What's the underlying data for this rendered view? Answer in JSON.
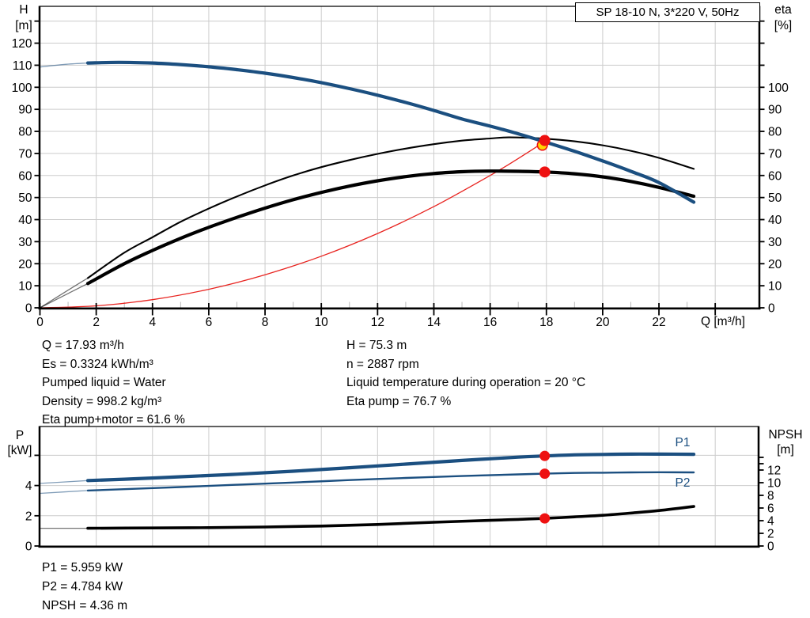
{
  "title_box": {
    "text": "SP 18-10 N, 3*220 V, 50Hz"
  },
  "colors": {
    "curve_blue": "#1b4f80",
    "curve_black": "#000000",
    "curve_red": "#e8231f",
    "marker_red": "#ee1111",
    "marker_yellow": "#ffd500",
    "grid": "#cccccc",
    "minor_tick_gray": "#bbbbbb",
    "axis_black": "#000000"
  },
  "top_chart_labels": {
    "y_left_1": "H",
    "y_left_2": "[m]",
    "y_right_1": "eta",
    "y_right_2": "[%]",
    "x_unit": "Q [m³/h]"
  },
  "bottom_chart_labels": {
    "y_left_1": "P",
    "y_left_2": "[kW]",
    "y_right_1": "NPSH",
    "y_right_2": "[m]",
    "p1": "P1",
    "p2": "P2"
  },
  "operating_point": {
    "left": [
      "Q = 17.93 m³/h",
      "Es = 0.3324 kWh/m³",
      "Pumped liquid = Water",
      "Density = 998.2 kg/m³",
      "Eta pump+motor = 61.6 %"
    ],
    "right": [
      "H = 75.3 m",
      "n = 2887 rpm",
      "Liquid temperature during operation = 20 °C",
      "Eta pump = 76.7 %"
    ]
  },
  "results": [
    "P1 = 5.959 kW",
    "P2 = 4.784 kW",
    "NPSH = 4.36 m"
  ],
  "chart_data": [
    {
      "type": "line",
      "title": "SP 18-10 N, 3*220 V, 50Hz",
      "xlabel": "Q [m³/h]",
      "x_range": [
        0,
        25.6
      ],
      "x_labeled_ticks": [
        0,
        2,
        4,
        6,
        8,
        10,
        12,
        14,
        16,
        18,
        20,
        22
      ],
      "x_major_ticks": [
        0,
        2,
        4,
        6,
        8,
        10,
        12,
        14,
        16,
        18,
        20,
        22,
        24
      ],
      "x_minor_ticks": [
        1,
        3,
        5,
        7,
        9,
        11,
        13,
        15,
        17,
        19,
        21,
        23
      ],
      "y_left": {
        "label": "H [m]",
        "range": [
          0,
          136
        ],
        "labeled_ticks": [
          0,
          10,
          20,
          30,
          40,
          50,
          60,
          70,
          80,
          90,
          100,
          110,
          120
        ],
        "unlabeled_ticks": [
          130
        ]
      },
      "y_right": {
        "label": "eta [%]",
        "range": [
          0,
          139
        ],
        "labeled_ticks": [
          0,
          10,
          20,
          30,
          40,
          50,
          60,
          70,
          80,
          90,
          100
        ],
        "unlabeled_ticks": [
          110,
          120,
          130
        ]
      },
      "grid": true,
      "min_continuous_flow": 1.7,
      "series": [
        {
          "name": "H",
          "axis": "left",
          "color_key": "curve_blue",
          "width": 4.2,
          "minflow_split": true,
          "points": [
            [
              0,
              109.2
            ],
            [
              0.9,
              110.4
            ],
            [
              1.7,
              111.0
            ],
            [
              2.8,
              111.3
            ],
            [
              4,
              111.0
            ],
            [
              5,
              110.3
            ],
            [
              6,
              109.3
            ],
            [
              7,
              108.0
            ],
            [
              8,
              106.4
            ],
            [
              9,
              104.4
            ],
            [
              10,
              102.1
            ],
            [
              11,
              99.4
            ],
            [
              12,
              96.4
            ],
            [
              13,
              93.1
            ],
            [
              14,
              89.5
            ],
            [
              15,
              85.6
            ],
            [
              16,
              82.4
            ],
            [
              17,
              78.9
            ],
            [
              17.93,
              75.3
            ],
            [
              19,
              71.0
            ],
            [
              20,
              66.6
            ],
            [
              21,
              61.9
            ],
            [
              22,
              56.8
            ],
            [
              23.24,
              47.9
            ]
          ]
        },
        {
          "name": "eta pump",
          "axis": "right",
          "color_key": "curve_black",
          "width": 2.1,
          "minflow_split": true,
          "points": [
            [
              0,
              0
            ],
            [
              1,
              8
            ],
            [
              1.7,
              13.5
            ],
            [
              3,
              25
            ],
            [
              4,
              32
            ],
            [
              5,
              39
            ],
            [
              6,
              45
            ],
            [
              7,
              50.5
            ],
            [
              8,
              55.5
            ],
            [
              9,
              60
            ],
            [
              10,
              63.8
            ],
            [
              11,
              67
            ],
            [
              12,
              69.8
            ],
            [
              13,
              72.2
            ],
            [
              14,
              74.2
            ],
            [
              15,
              75.8
            ],
            [
              16,
              76.8
            ],
            [
              16.7,
              77.3
            ],
            [
              17.93,
              76.7
            ],
            [
              19,
              75.5
            ],
            [
              20,
              73.7
            ],
            [
              21,
              71.2
            ],
            [
              22,
              68.0
            ],
            [
              23.24,
              63.0
            ]
          ]
        },
        {
          "name": "eta pump+motor",
          "axis": "right",
          "color_key": "curve_black",
          "width": 4.2,
          "minflow_split": true,
          "points": [
            [
              0,
              0
            ],
            [
              1,
              6.5
            ],
            [
              1.7,
              11
            ],
            [
              3,
              20
            ],
            [
              4,
              26
            ],
            [
              5,
              31.5
            ],
            [
              6,
              36.5
            ],
            [
              7,
              41
            ],
            [
              8,
              45.2
            ],
            [
              9,
              49
            ],
            [
              10,
              52.3
            ],
            [
              11,
              55.2
            ],
            [
              12,
              57.6
            ],
            [
              13,
              59.5
            ],
            [
              14,
              60.9
            ],
            [
              15,
              61.7
            ],
            [
              16,
              62.0
            ],
            [
              17,
              61.9
            ],
            [
              17.93,
              61.6
            ],
            [
              19,
              60.8
            ],
            [
              20,
              59.4
            ],
            [
              21,
              57.3
            ],
            [
              22,
              54.6
            ],
            [
              23.24,
              50.6
            ]
          ]
        },
        {
          "name": "system curve",
          "axis": "left",
          "color_key": "curve_red",
          "width": 1.3,
          "minflow_split": false,
          "points": [
            [
              0,
              0
            ],
            [
              2,
              0.9
            ],
            [
              4,
              3.7
            ],
            [
              6,
              8.4
            ],
            [
              8,
              15.0
            ],
            [
              10,
              23.4
            ],
            [
              12,
              33.7
            ],
            [
              14,
              45.9
            ],
            [
              16,
              60.0
            ],
            [
              17,
              67.7
            ],
            [
              17.93,
              75.3
            ]
          ]
        }
      ],
      "markers": [
        {
          "name": "duty-point-eta",
          "q": 17.93,
          "value": 76.7,
          "axis": "right",
          "style": "yellow"
        },
        {
          "name": "duty-point-h",
          "q": 17.93,
          "value": 75.3,
          "axis": "left",
          "style": "red"
        },
        {
          "name": "duty-point-eta-pm",
          "q": 17.93,
          "value": 61.6,
          "axis": "right",
          "style": "red"
        }
      ]
    },
    {
      "type": "line",
      "xlabel": "",
      "x_range": [
        0,
        25.5
      ],
      "x_gridlines": [
        2,
        4,
        6,
        8,
        10,
        12,
        14,
        16,
        18,
        20,
        22,
        24
      ],
      "y_left": {
        "label": "P [kW]",
        "range": [
          0,
          7.9
        ],
        "labeled_ticks": [
          0,
          2,
          4
        ],
        "unlabeled_ticks": [
          6
        ]
      },
      "y_right": {
        "label": "NPSH [m]",
        "range": [
          0,
          18.9
        ],
        "labeled_ticks": [
          0,
          2,
          4,
          6,
          8,
          10,
          12
        ],
        "unlabeled_ticks": [
          13,
          14
        ]
      },
      "grid": true,
      "min_continuous_flow": 1.7,
      "series": [
        {
          "name": "P1",
          "axis": "left",
          "color_key": "curve_blue",
          "width": 4.2,
          "minflow_split": true,
          "points": [
            [
              0,
              4.14
            ],
            [
              1.7,
              4.33
            ],
            [
              3,
              4.42
            ],
            [
              5,
              4.58
            ],
            [
              7,
              4.75
            ],
            [
              9,
              4.95
            ],
            [
              11,
              5.18
            ],
            [
              13,
              5.42
            ],
            [
              15,
              5.66
            ],
            [
              17,
              5.88
            ],
            [
              17.93,
              5.959
            ],
            [
              19,
              6.03
            ],
            [
              20,
              6.06
            ],
            [
              21,
              6.08
            ],
            [
              22,
              6.08
            ],
            [
              23.24,
              6.07
            ]
          ]
        },
        {
          "name": "P2",
          "axis": "left",
          "color_key": "curve_blue",
          "width": 2.4,
          "minflow_split": true,
          "points": [
            [
              0,
              3.48
            ],
            [
              1.7,
              3.67
            ],
            [
              3,
              3.76
            ],
            [
              5,
              3.9
            ],
            [
              7,
              4.05
            ],
            [
              9,
              4.2
            ],
            [
              11,
              4.36
            ],
            [
              13,
              4.5
            ],
            [
              15,
              4.63
            ],
            [
              17,
              4.74
            ],
            [
              17.93,
              4.784
            ],
            [
              19,
              4.83
            ],
            [
              20,
              4.85
            ],
            [
              21,
              4.87
            ],
            [
              22,
              4.88
            ],
            [
              23.24,
              4.87
            ]
          ]
        },
        {
          "name": "NPSH",
          "axis": "right",
          "color_key": "curve_black",
          "width": 3.6,
          "minflow_split": true,
          "points": [
            [
              0,
              2.8
            ],
            [
              1.7,
              2.8
            ],
            [
              4,
              2.85
            ],
            [
              6,
              2.9
            ],
            [
              8,
              3.0
            ],
            [
              10,
              3.15
            ],
            [
              12,
              3.4
            ],
            [
              14,
              3.75
            ],
            [
              16,
              4.05
            ],
            [
              17,
              4.2
            ],
            [
              17.93,
              4.36
            ],
            [
              19,
              4.6
            ],
            [
              20,
              4.85
            ],
            [
              21,
              5.2
            ],
            [
              22,
              5.6
            ],
            [
              23.24,
              6.25
            ]
          ]
        }
      ],
      "markers": [
        {
          "name": "duty-point-p1",
          "q": 17.93,
          "value": 5.959,
          "axis": "left",
          "style": "red"
        },
        {
          "name": "duty-point-p2",
          "q": 17.93,
          "value": 4.784,
          "axis": "left",
          "style": "red"
        },
        {
          "name": "duty-point-npsh",
          "q": 17.93,
          "value": 4.36,
          "axis": "right",
          "style": "red"
        }
      ]
    }
  ]
}
